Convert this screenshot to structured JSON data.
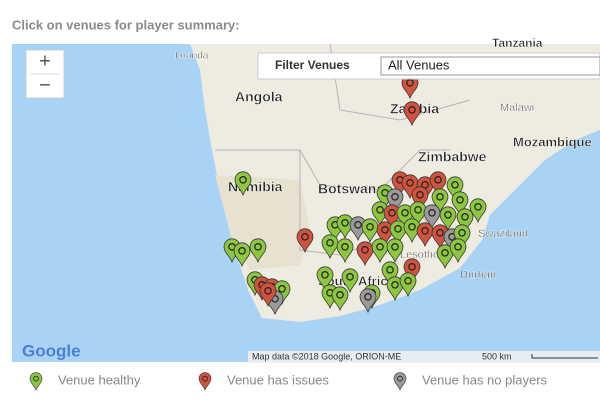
{
  "header": {
    "title": "Click on venues for player summary:"
  },
  "controls": {
    "zoom_in": "+",
    "zoom_out": "−",
    "filter_label": "Filter Venues",
    "filter_value": "All Venues"
  },
  "map": {
    "labels": [
      "Tanzania",
      "Luanda",
      "Angola",
      "Zambia",
      "Malawi",
      "Mozambique",
      "Zimbabwe",
      "Namibia",
      "Botswana",
      "South Africa",
      "Lesotho",
      "Durban",
      "Swaziland"
    ],
    "logo": "Google",
    "attribution": "Map data ©2018 Google, ORION-ME",
    "scale": "500 km"
  },
  "legend": [
    {
      "label": "Venue healthy",
      "color": "#8dc63f"
    },
    {
      "label": "Venue has issues",
      "color": "#d0533f"
    },
    {
      "label": "Venue has no players",
      "color": "#9a9a9a"
    }
  ]
}
